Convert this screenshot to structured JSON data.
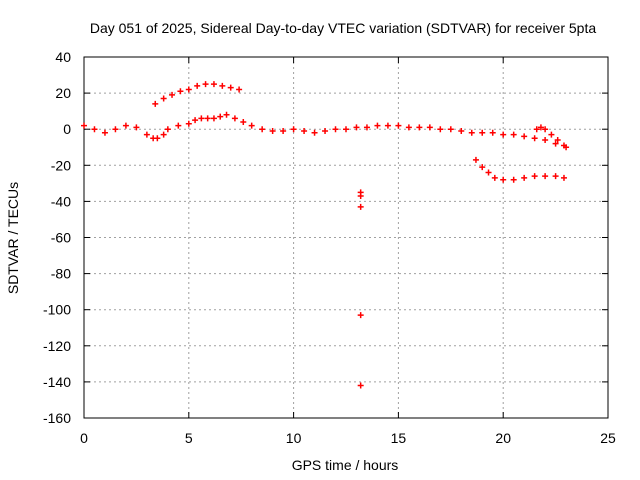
{
  "chart_data": {
    "type": "scatter",
    "title": "Day 051 of 2025, Sidereal Day-to-day VTEC variation (SDTVAR) for receiver 5pta",
    "xlabel": "GPS time / hours",
    "ylabel": "SDTVAR / TECUs",
    "xlim": [
      0,
      25
    ],
    "ylim": [
      -160,
      40
    ],
    "xticks": [
      0,
      5,
      10,
      15,
      20,
      25
    ],
    "xtick_labels": [
      "0",
      "5",
      "10",
      "15",
      "20",
      "25"
    ],
    "yticks": [
      40,
      20,
      0,
      -20,
      -40,
      -60,
      -80,
      -100,
      -120,
      -140,
      -160
    ],
    "ytick_labels": [
      "40",
      "20",
      "0",
      "-20",
      "-40",
      "-60",
      "-80",
      "-100",
      "-120",
      "-140",
      "-160"
    ],
    "grid": true,
    "marker": "plus",
    "color": "#ff0000",
    "series": [
      {
        "name": "main",
        "x": [
          0,
          0.5,
          1,
          1.5,
          2,
          2.5,
          3,
          3.3,
          3.5,
          3.8,
          4,
          4.5,
          5,
          5.3,
          5.6,
          5.9,
          6.2,
          6.5,
          6.8,
          7.2,
          7.6,
          8,
          8.5,
          9,
          9.5,
          10,
          10.5,
          11,
          11.5,
          12,
          12.5,
          13,
          13.5,
          14,
          14.5,
          15,
          15.5,
          16,
          16.5,
          17,
          17.5,
          18,
          18.5,
          19,
          19.5,
          20,
          20.5,
          21,
          21.5,
          22,
          22.5,
          23
        ],
        "y": [
          2,
          0,
          -2,
          0,
          2,
          1,
          -3,
          -5,
          -5,
          -3,
          0,
          2,
          3,
          5,
          6,
          6,
          6,
          7,
          8,
          6,
          4,
          2,
          0,
          -1,
          -1,
          0,
          -1,
          -2,
          -1,
          0,
          0,
          1,
          1,
          2,
          2,
          2,
          1,
          1,
          1,
          0,
          0,
          -1,
          -2,
          -2,
          -2,
          -3,
          -3,
          -4,
          -5,
          -6,
          -8,
          -10
        ]
      },
      {
        "name": "upper arc",
        "x": [
          3.4,
          3.8,
          4.2,
          4.6,
          5,
          5.4,
          5.8,
          6.2,
          6.6,
          7,
          7.4
        ],
        "y": [
          14,
          17,
          19,
          21,
          22,
          24,
          25,
          25,
          24,
          23,
          22
        ]
      },
      {
        "name": "late drop",
        "x": [
          18.7,
          19,
          19.3,
          19.6,
          20,
          20.5,
          21,
          21.5,
          22,
          22.5,
          22.9
        ],
        "y": [
          -17,
          -21,
          -24,
          -27,
          -28,
          -28,
          -27,
          -26,
          -26,
          -26,
          -27
        ]
      },
      {
        "name": "late hump",
        "x": [
          21.6,
          21.8,
          22,
          22.3,
          22.6,
          22.9
        ],
        "y": [
          0,
          1,
          0,
          -3,
          -6,
          -9
        ]
      },
      {
        "name": "isolated",
        "x": [
          13.2,
          13.2,
          13.2,
          13.2,
          13.2
        ],
        "y": [
          -35,
          -37,
          -43,
          -103,
          -142
        ]
      }
    ]
  }
}
